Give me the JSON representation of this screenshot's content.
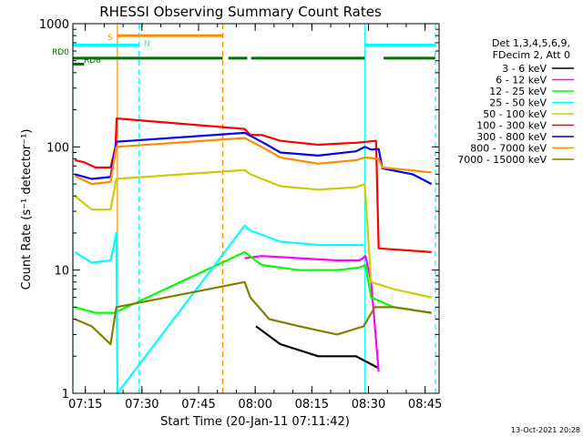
{
  "chart_data": {
    "type": "line",
    "title": "RHESSI Observing Summary Count Rates",
    "xlabel": "Start Time (20-Jan-11 07:11:42)",
    "ylabel": "Count Rate (s⁻¹ detector⁻¹)",
    "yscale": "log",
    "ylim": [
      1,
      1000
    ],
    "xlim_minutes": [
      0,
      97
    ],
    "x_ticks": [
      {
        "minute": 3.3,
        "label": "07:15"
      },
      {
        "minute": 18.3,
        "label": "07:30"
      },
      {
        "minute": 33.3,
        "label": "07:45"
      },
      {
        "minute": 48.3,
        "label": "08:00"
      },
      {
        "minute": 63.3,
        "label": "08:15"
      },
      {
        "minute": 78.3,
        "label": "08:30"
      },
      {
        "minute": 93.3,
        "label": "08:45"
      }
    ],
    "y_ticks": [
      {
        "value": 1,
        "label": "1"
      },
      {
        "value": 10,
        "label": "10"
      },
      {
        "value": 100,
        "label": "100"
      },
      {
        "value": 1000,
        "label": "1000"
      }
    ],
    "legend": {
      "position": "top-right",
      "header": [
        "Det 1,3,4,5,6,9,",
        "FDecim 2, Att 0"
      ]
    },
    "flags": [
      {
        "label": "S",
        "color": "#ff8c00",
        "value_y": 800,
        "segments": [
          [
            11.8,
            39.7
          ]
        ]
      },
      {
        "label": "N",
        "color": "#00ffff",
        "value_y": 670,
        "segments": [
          [
            0,
            17.5
          ],
          [
            77.3,
            96
          ]
        ]
      },
      {
        "label": "RD0",
        "color": "#007000",
        "value_y": 525,
        "segments": [
          [
            0,
            39.7
          ],
          [
            41.2,
            46.2
          ],
          [
            47.2,
            77.3
          ],
          [
            82.3,
            96
          ]
        ]
      },
      {
        "label": "RD6",
        "color": "#007000",
        "value_y": 470,
        "segments": [
          [
            0,
            3
          ]
        ]
      }
    ],
    "vlines": [
      {
        "minute": 0,
        "color": "#00ffff",
        "dash": false
      },
      {
        "minute": 11.8,
        "color": "#ff8c00",
        "dash": false
      },
      {
        "minute": 17.5,
        "color": "#00ffff",
        "dash": true
      },
      {
        "minute": 39.7,
        "color": "#ff8c00",
        "dash": true
      },
      {
        "minute": 77.3,
        "color": "#00ffff",
        "dash": false
      },
      {
        "minute": 96,
        "color": "#00ffff",
        "dash": true
      }
    ],
    "series": [
      {
        "name": "3 - 6 keV",
        "color": "#000000",
        "points": [
          [
            48.5,
            3.5
          ],
          [
            55,
            2.5
          ],
          [
            65,
            2.0
          ],
          [
            75,
            2.0
          ],
          [
            81,
            1.6
          ]
        ]
      },
      {
        "name": "6 - 12 keV",
        "color": "#ff00ff",
        "points": [
          [
            45.5,
            12.5
          ],
          [
            50,
            13.0
          ],
          [
            60,
            12.5
          ],
          [
            70,
            12.0
          ],
          [
            76,
            12.0
          ],
          [
            77.5,
            13.0
          ],
          [
            79,
            8.0
          ],
          [
            81,
            1.5
          ]
        ]
      },
      {
        "name": "12 - 25 keV",
        "color": "#00ff00",
        "points": [
          [
            0.5,
            5.0
          ],
          [
            6,
            4.5
          ],
          [
            11,
            4.5
          ],
          [
            45.5,
            14.0
          ],
          [
            50,
            11.0
          ],
          [
            60,
            10.0
          ],
          [
            70,
            10.0
          ],
          [
            76,
            10.5
          ],
          [
            77.5,
            11.0
          ],
          [
            79,
            6.0
          ],
          [
            85,
            5.0
          ],
          [
            95,
            4.5
          ]
        ]
      },
      {
        "name": "25 - 50 keV",
        "color": "#00ffff",
        "points": [
          [
            0.5,
            14.0
          ],
          [
            5,
            11.5
          ],
          [
            10,
            12.0
          ],
          [
            11.5,
            20.0
          ],
          [
            11.8,
            1.0
          ],
          [
            45.5,
            23.0
          ],
          [
            47,
            21.0
          ],
          [
            55,
            17.0
          ],
          [
            65,
            16.0
          ],
          [
            75,
            16.0
          ],
          [
            77,
            16.0
          ]
        ]
      },
      {
        "name": "50 - 100 keV",
        "color": "#cccc00",
        "points": [
          [
            0.5,
            40.0
          ],
          [
            5,
            31.0
          ],
          [
            10,
            31.0
          ],
          [
            11.5,
            55.0
          ],
          [
            45.5,
            65.0
          ],
          [
            47,
            60.0
          ],
          [
            55,
            48.0
          ],
          [
            65,
            45.0
          ],
          [
            75,
            47.0
          ],
          [
            77.3,
            50.0
          ],
          [
            79,
            8.0
          ],
          [
            85,
            7.0
          ],
          [
            95,
            6.0
          ]
        ]
      },
      {
        "name": "100 - 300 keV",
        "color": "#ff0000",
        "points": [
          [
            0.5,
            78.0
          ],
          [
            3,
            75.0
          ],
          [
            6,
            68.0
          ],
          [
            10,
            68.0
          ],
          [
            11.3,
            100.0
          ],
          [
            11.6,
            170.0
          ],
          [
            45.5,
            140.0
          ],
          [
            47,
            125.0
          ],
          [
            50,
            125.0
          ],
          [
            55,
            112.0
          ],
          [
            65,
            104.0
          ],
          [
            75,
            108.0
          ],
          [
            80.3,
            112.0
          ],
          [
            81,
            15.0
          ],
          [
            95,
            14.0
          ]
        ]
      },
      {
        "name": "300 - 800 keV",
        "color": "#0000ff",
        "points": [
          [
            0.5,
            60.0
          ],
          [
            5,
            55.0
          ],
          [
            10,
            57.0
          ],
          [
            11.5,
            110.0
          ],
          [
            45.5,
            130.0
          ],
          [
            50,
            110.0
          ],
          [
            55,
            90.0
          ],
          [
            65,
            85.0
          ],
          [
            75,
            92.0
          ],
          [
            77.3,
            100.0
          ],
          [
            79,
            95.0
          ],
          [
            81,
            96.0
          ],
          [
            82,
            67.0
          ],
          [
            90,
            60.0
          ],
          [
            95,
            50.0
          ]
        ]
      },
      {
        "name": "800 - 7000 keV",
        "color": "#ff8c00",
        "points": [
          [
            0.5,
            58.0
          ],
          [
            5,
            50.0
          ],
          [
            10,
            52.0
          ],
          [
            11.5,
            100.0
          ],
          [
            45.5,
            118.0
          ],
          [
            50,
            100.0
          ],
          [
            55,
            82.0
          ],
          [
            65,
            73.0
          ],
          [
            75,
            78.0
          ],
          [
            77.3,
            82.0
          ],
          [
            81,
            80.0
          ],
          [
            82,
            68.0
          ],
          [
            95,
            62.0
          ]
        ]
      },
      {
        "name": "7000 - 15000 keV",
        "color": "#808000",
        "points": [
          [
            0.5,
            4.0
          ],
          [
            5,
            3.5
          ],
          [
            10,
            2.5
          ],
          [
            11.5,
            5.0
          ],
          [
            45.5,
            8.0
          ],
          [
            47,
            6.0
          ],
          [
            52,
            4.0
          ],
          [
            60,
            3.5
          ],
          [
            70,
            3.0
          ],
          [
            77,
            3.5
          ],
          [
            80,
            5.0
          ],
          [
            85,
            5.0
          ],
          [
            95,
            4.5
          ]
        ]
      }
    ]
  },
  "footer_timestamp": "13-Oct-2021 20:28"
}
